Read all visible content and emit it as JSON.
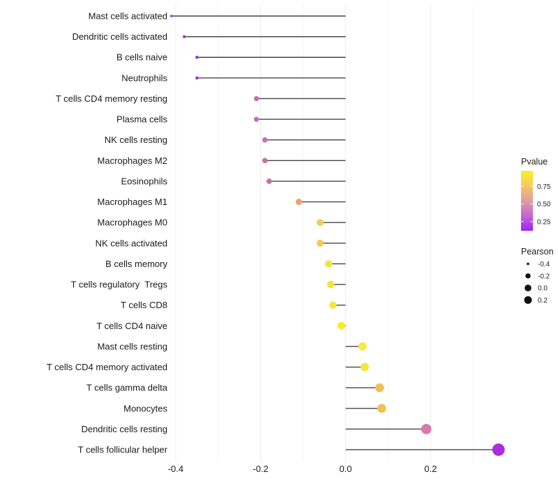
{
  "chart_data": {
    "type": "scatter",
    "variant": "lollipop",
    "orientation": "horizontal",
    "title": "",
    "xlabel": "",
    "ylabel": "",
    "x_ticks": [
      "-0.4",
      "-0.2",
      "0.0",
      "0.2"
    ],
    "x_tick_values": [
      -0.4,
      -0.2,
      0.0,
      0.2
    ],
    "x_minor_values": [
      -0.3,
      -0.1,
      0.1,
      0.3
    ],
    "xlim": [
      -0.445,
      0.385
    ],
    "grid": "vertical-only",
    "stem_origin": 0.0,
    "points": [
      {
        "label": "Mast cells activated",
        "pearson": -0.41,
        "color": "#9632D3"
      },
      {
        "label": "Dendritic cells activated",
        "pearson": -0.38,
        "color": "#9632D3"
      },
      {
        "label": "B cells naive",
        "pearson": -0.35,
        "color": "#9C36D8"
      },
      {
        "label": "Neutrophils",
        "pearson": -0.35,
        "color": "#9C36D8"
      },
      {
        "label": "T cells CD4 memory resting",
        "pearson": -0.21,
        "color": "#C96BB3"
      },
      {
        "label": "Plasma cells",
        "pearson": -0.21,
        "color": "#CA6DB2"
      },
      {
        "label": "NK cells resting",
        "pearson": -0.19,
        "color": "#CD6DAC"
      },
      {
        "label": "Macrophages M2",
        "pearson": -0.19,
        "color": "#CD6DAC"
      },
      {
        "label": "Eosinophils",
        "pearson": -0.18,
        "color": "#CE70A9"
      },
      {
        "label": "Macrophages M1",
        "pearson": -0.11,
        "color": "#EDA46C"
      },
      {
        "label": "Macrophages M0",
        "pearson": -0.06,
        "color": "#F2CC55"
      },
      {
        "label": "NK cells activated",
        "pearson": -0.06,
        "color": "#F2CC55"
      },
      {
        "label": "B cells memory",
        "pearson": -0.04,
        "color": "#F5E33B"
      },
      {
        "label": "T cells regulatory  Tregs",
        "pearson": -0.035,
        "color": "#F5E43B"
      },
      {
        "label": "T cells CD8",
        "pearson": -0.03,
        "color": "#F6E73D"
      },
      {
        "label": "T cells CD4 naive",
        "pearson": -0.01,
        "color": "#F8ED26"
      },
      {
        "label": "Mast cells resting",
        "pearson": 0.04,
        "color": "#F7E93D"
      },
      {
        "label": "T cells CD4 memory activated",
        "pearson": 0.045,
        "color": "#F6E442"
      },
      {
        "label": "T cells gamma delta",
        "pearson": 0.08,
        "color": "#EFBF55"
      },
      {
        "label": "Monocytes",
        "pearson": 0.085,
        "color": "#EFC052"
      },
      {
        "label": "Dendritic cells resting",
        "pearson": 0.19,
        "color": "#D878AC"
      },
      {
        "label": "T cells follicular helper",
        "pearson": 0.36,
        "color": "#AC2CDF"
      }
    ],
    "size_scale": {
      "domain": [
        -0.41,
        0.36
      ],
      "radius_range": [
        1.8,
        8.9
      ]
    },
    "legends": {
      "pvalue": {
        "title": "Pvalue",
        "ticks": [
          {
            "label": "0.75",
            "value": 0.75
          },
          {
            "label": "0.50",
            "value": 0.5
          },
          {
            "label": "0.25",
            "value": 0.25
          }
        ],
        "gradient_top_to_bottom": [
          "#FCEF25",
          "#F5C95C",
          "#E09BA4",
          "#C467D2",
          "#A022F2"
        ]
      },
      "pearson": {
        "title": "Pearson",
        "entries": [
          {
            "label": "-0.4",
            "value": -0.4,
            "radius": 1.8
          },
          {
            "label": "-0.2",
            "value": -0.2,
            "radius": 3.7
          },
          {
            "label": "0.0",
            "value": 0.0,
            "radius": 4.8
          },
          {
            "label": "0.2",
            "value": 0.2,
            "radius": 5.5
          }
        ]
      }
    },
    "colors": {
      "stem": "#444444",
      "grid_major": "#ededed",
      "grid_minor": "#f6f6f6",
      "axis_text": "#1a1a1a",
      "legend_dot": "#111111"
    }
  }
}
